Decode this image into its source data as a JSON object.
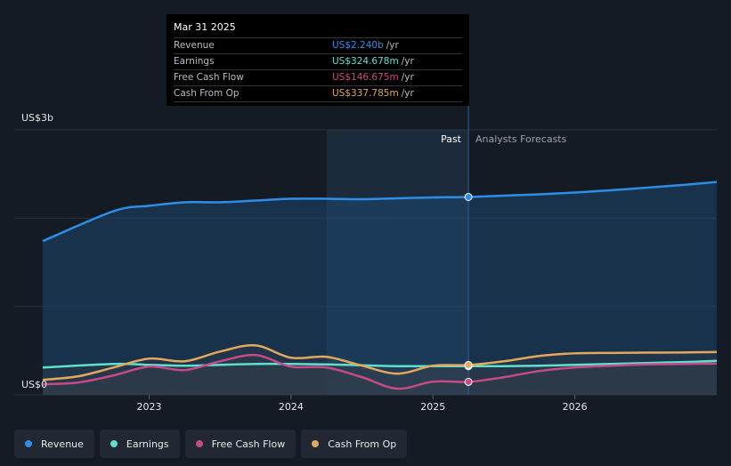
{
  "chart_data": {
    "type": "line",
    "y_axis": {
      "label_top": "US$3b",
      "label_bottom": "US$0",
      "ylim": [
        0,
        3000
      ]
    },
    "x_ticks": [
      "2023",
      "2024",
      "2025",
      "2026"
    ],
    "past_label": "Past",
    "forecast_label": "Analysts Forecasts",
    "past_end": 2025.25,
    "tooltip": {
      "date": "Mar 31 2025",
      "rows": [
        {
          "label": "Revenue",
          "value": "US$2.240b",
          "unit": "/yr",
          "color": "#2d8ee8"
        },
        {
          "label": "Earnings",
          "value": "US$324.678m",
          "unit": "/yr",
          "color": "#5ee0cf"
        },
        {
          "label": "Free Cash Flow",
          "value": "US$146.675m",
          "unit": "/yr",
          "color": "#c54b86"
        },
        {
          "label": "Cash From Op",
          "value": "US$337.785m",
          "unit": "/yr",
          "color": "#e2a85c"
        }
      ]
    },
    "series": [
      {
        "name": "Revenue",
        "color": "#2d8ee8",
        "fill": true,
        "x": [
          2022.25,
          2022.75,
          2023.0,
          2023.25,
          2023.5,
          2023.75,
          2024.0,
          2024.25,
          2024.5,
          2024.75,
          2025.0,
          2025.25,
          2025.5,
          2025.75,
          2026.0,
          2026.25,
          2026.5,
          2026.75,
          2027.0
        ],
        "y": [
          1740,
          2080,
          2140,
          2180,
          2180,
          2200,
          2220,
          2220,
          2215,
          2225,
          2235,
          2240,
          2255,
          2270,
          2290,
          2315,
          2345,
          2375,
          2410
        ]
      },
      {
        "name": "Earnings",
        "color": "#5ee0cf",
        "fill": false,
        "x": [
          2022.25,
          2022.75,
          2023.0,
          2023.25,
          2023.5,
          2023.75,
          2024.0,
          2024.25,
          2024.5,
          2024.75,
          2025.0,
          2025.25,
          2025.5,
          2025.75,
          2026.0,
          2026.25,
          2026.5,
          2026.75,
          2027.0
        ],
        "y": [
          310,
          350,
          340,
          330,
          340,
          350,
          350,
          345,
          335,
          325,
          325,
          325,
          325,
          330,
          340,
          350,
          360,
          370,
          385
        ]
      },
      {
        "name": "Free Cash Flow",
        "color": "#c54b86",
        "fill": false,
        "x": [
          2022.25,
          2022.5,
          2022.75,
          2023.0,
          2023.25,
          2023.5,
          2023.75,
          2024.0,
          2024.25,
          2024.5,
          2024.75,
          2025.0,
          2025.25,
          2025.5,
          2025.75,
          2026.0,
          2026.25,
          2026.5,
          2026.75,
          2027.0
        ],
        "y": [
          120,
          140,
          220,
          320,
          280,
          380,
          450,
          320,
          310,
          200,
          70,
          150,
          147,
          200,
          270,
          310,
          330,
          345,
          350,
          355
        ]
      },
      {
        "name": "Cash From Op",
        "color": "#e2a85c",
        "fill": false,
        "x": [
          2022.25,
          2022.5,
          2022.75,
          2023.0,
          2023.25,
          2023.5,
          2023.75,
          2024.0,
          2024.25,
          2024.5,
          2024.75,
          2025.0,
          2025.25,
          2025.5,
          2025.75,
          2026.0,
          2026.25,
          2026.5,
          2026.75,
          2027.0
        ],
        "y": [
          170,
          210,
          310,
          410,
          380,
          490,
          560,
          420,
          430,
          330,
          240,
          330,
          338,
          380,
          440,
          470,
          475,
          478,
          480,
          485
        ]
      }
    ]
  },
  "legend": [
    {
      "label": "Revenue",
      "color": "#2d8ee8"
    },
    {
      "label": "Earnings",
      "color": "#5ee0cf"
    },
    {
      "label": "Free Cash Flow",
      "color": "#c54b86"
    },
    {
      "label": "Cash From Op",
      "color": "#e2a85c"
    }
  ]
}
